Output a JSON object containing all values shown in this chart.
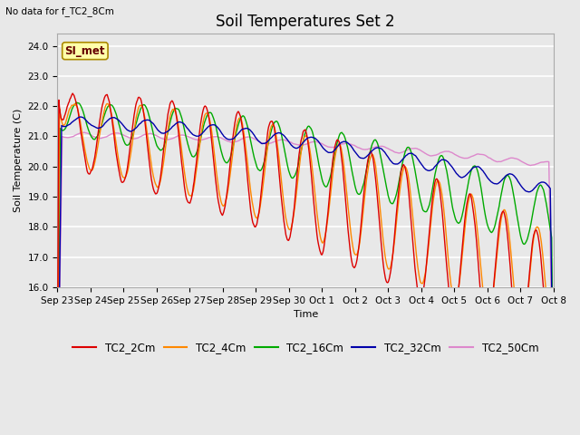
{
  "title": "Soil Temperatures Set 2",
  "xlabel": "Time",
  "ylabel": "Soil Temperature (C)",
  "no_data_text": "No data for f_TC2_8Cm",
  "si_met_label": "SI_met",
  "ylim": [
    16.0,
    24.4
  ],
  "yticks": [
    16.0,
    17.0,
    18.0,
    19.0,
    20.0,
    21.0,
    22.0,
    23.0,
    24.0
  ],
  "fig_bg_color": "#e8e8e8",
  "plot_bg_color": "#e8e8e8",
  "series_colors": {
    "TC2_2Cm": "#dd0000",
    "TC2_4Cm": "#ff8800",
    "TC2_16Cm": "#00aa00",
    "TC2_32Cm": "#0000aa",
    "TC2_50Cm": "#dd88cc"
  },
  "x_tick_labels": [
    "Sep 23",
    "Sep 24",
    "Sep 25",
    "Sep 26",
    "Sep 27",
    "Sep 28",
    "Sep 29",
    "Sep 30",
    "Oct 1",
    "Oct 2",
    "Oct 3",
    "Oct 4",
    "Oct 5",
    "Oct 6",
    "Oct 7",
    "Oct 8"
  ],
  "title_fontsize": 12,
  "axis_label_fontsize": 8,
  "tick_fontsize": 7.5,
  "legend_fontsize": 8.5,
  "linewidth": 1.0
}
